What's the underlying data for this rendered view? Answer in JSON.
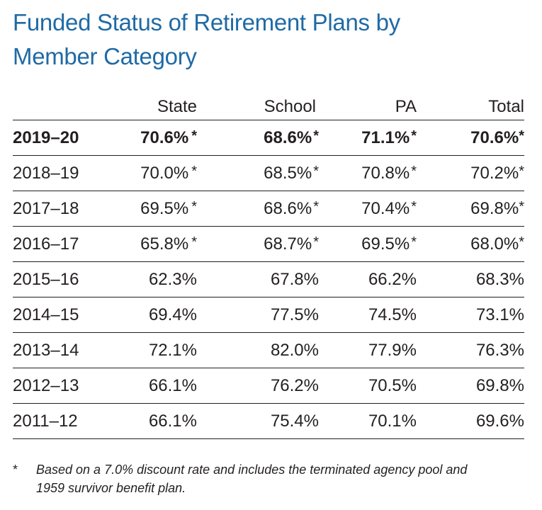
{
  "title": "Funded Status of Retirement Plans by Member Category",
  "chart_data": {
    "type": "table",
    "title": "Funded Status of Retirement Plans by Member Category",
    "columns": [
      "",
      "State",
      "School",
      "PA",
      "Total"
    ],
    "rows": [
      {
        "year": "2019–20",
        "bold": true,
        "state": "70.6%",
        "school": "68.6%",
        "pa": "71.1%",
        "total": "70.6%",
        "flagged": true
      },
      {
        "year": "2018–19",
        "bold": false,
        "state": "70.0%",
        "school": "68.5%",
        "pa": "70.8%",
        "total": "70.2%",
        "flagged": true
      },
      {
        "year": "2017–18",
        "bold": false,
        "state": "69.5%",
        "school": "68.6%",
        "pa": "70.4%",
        "total": "69.8%",
        "flagged": true
      },
      {
        "year": "2016–17",
        "bold": false,
        "state": "65.8%",
        "school": "68.7%",
        "pa": "69.5%",
        "total": "68.0%",
        "flagged": true
      },
      {
        "year": "2015–16",
        "bold": false,
        "state": "62.3%",
        "school": "67.8%",
        "pa": "66.2%",
        "total": "68.3%",
        "flagged": false
      },
      {
        "year": "2014–15",
        "bold": false,
        "state": "69.4%",
        "school": "77.5%",
        "pa": "74.5%",
        "total": "73.1%",
        "flagged": false
      },
      {
        "year": "2013–14",
        "bold": false,
        "state": "72.1%",
        "school": "82.0%",
        "pa": "77.9%",
        "total": "76.3%",
        "flagged": false
      },
      {
        "year": "2012–13",
        "bold": false,
        "state": "66.1%",
        "school": "76.2%",
        "pa": "70.5%",
        "total": "69.8%",
        "flagged": false
      },
      {
        "year": "2011–12",
        "bold": false,
        "state": "66.1%",
        "school": "75.4%",
        "pa": "70.1%",
        "total": "69.6%",
        "flagged": false
      }
    ],
    "star_symbol": "*"
  },
  "footnote": {
    "mark": "*",
    "text": "Based on a 7.0% discount rate and includes the terminated agency pool and 1959 survivor benefit plan."
  },
  "colors": {
    "title": "#1f6aa5",
    "text": "#231f20",
    "rule": "#231f20"
  }
}
